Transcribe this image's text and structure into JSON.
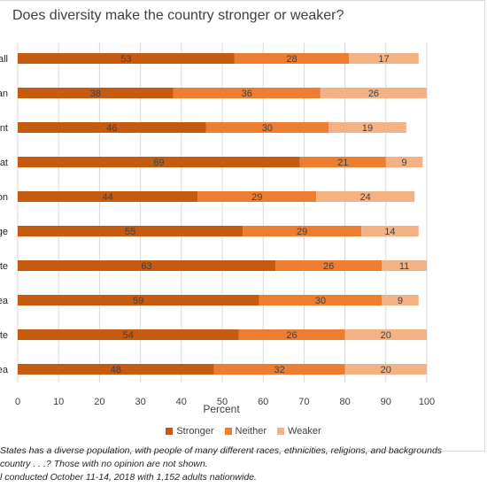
{
  "title": "Does diversity make the country stronger or weaker?",
  "chart_data": {
    "type": "bar",
    "orientation": "horizontal",
    "stacked": true,
    "categories": [
      "all",
      "an",
      "nt",
      "at",
      "on",
      "ge",
      "te",
      "ea",
      "te",
      "ea"
    ],
    "series": [
      {
        "name": "Stronger",
        "values": [
          53,
          38,
          46,
          69,
          44,
          55,
          63,
          59,
          54,
          48
        ]
      },
      {
        "name": "Neither",
        "values": [
          28,
          36,
          30,
          21,
          29,
          29,
          26,
          30,
          26,
          32
        ]
      },
      {
        "name": "Weaker",
        "values": [
          17,
          26,
          19,
          9,
          24,
          14,
          11,
          9,
          20,
          20
        ]
      }
    ],
    "xlabel": "Percent",
    "xlim": [
      0,
      100
    ],
    "xticks": [
      0,
      10,
      20,
      30,
      40,
      50,
      60,
      70,
      80,
      90,
      100
    ],
    "grid": true,
    "legend_position": "bottom"
  },
  "colors": {
    "Stronger": "#c55a11",
    "Neither": "#ed7d31",
    "Weaker": "#f4b183",
    "grid": "#d9d9d9",
    "text": "#404040"
  },
  "footnotes": [
    "States has a diverse population, with people of many different races, ethnicities, religions, and backgrounds",
    "country . . .? Those with no opinion are not shown.",
    "l conducted October 11-14, 2018 with 1,152 adults nationwide."
  ]
}
